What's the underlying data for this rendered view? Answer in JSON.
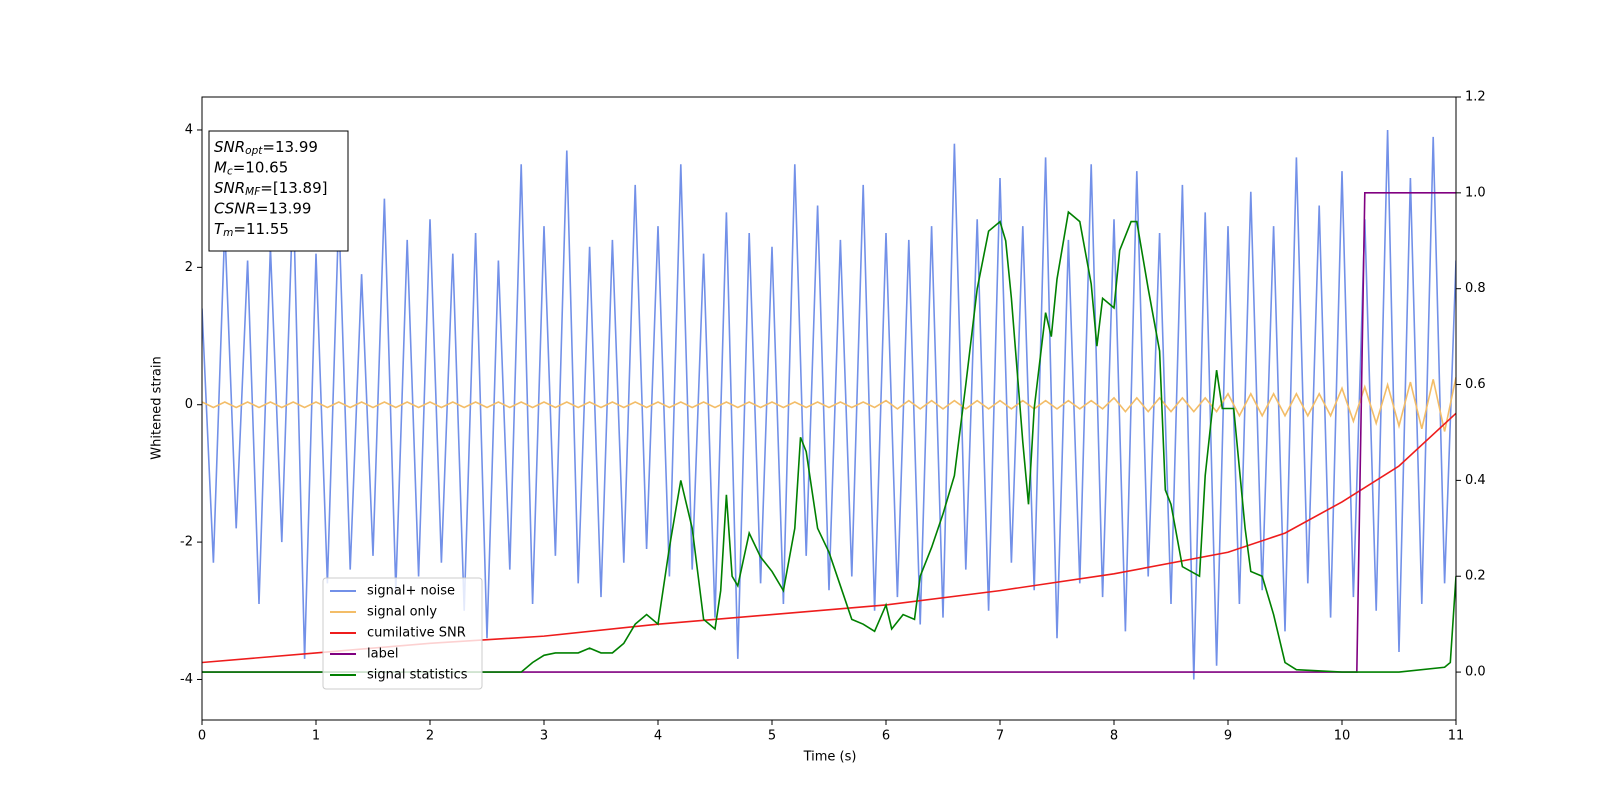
{
  "chart_data": {
    "type": "line",
    "x_label": "Time (s)",
    "y_label": "Whitened strain",
    "xlim": [
      0,
      11
    ],
    "xticks": [
      0,
      1,
      2,
      3,
      4,
      5,
      6,
      7,
      8,
      9,
      10,
      11
    ],
    "ylim": [
      -4.59,
      4.48
    ],
    "yticks": [
      -4,
      -2,
      0,
      2,
      4
    ],
    "y2lim": [
      -0.1,
      1.2
    ],
    "y2ticks": [
      {
        "value": 0,
        "label": "0.0"
      },
      0.2,
      0.4,
      0.6,
      0.8,
      {
        "value": 1,
        "label": "1.0"
      },
      1.2
    ],
    "legend": "lower left",
    "annotation": [
      {
        "symbol": "SNR",
        "sub": "opt",
        "text": "=13.99"
      },
      {
        "symbol": "M",
        "sub": "c",
        "text": "=10.65"
      },
      {
        "symbol": "SNR",
        "sub": "MF",
        "text": "=[13.89]"
      },
      {
        "symbol": "CSNR",
        "sub": null,
        "text": "=13.99"
      },
      {
        "symbol": "T",
        "sub": "m",
        "text": "=11.55"
      }
    ],
    "x": [
      0,
      0.1,
      0.2,
      0.3,
      0.4,
      0.5,
      0.6,
      0.7,
      0.8,
      0.9,
      1,
      1.1,
      1.2,
      1.3,
      1.4,
      1.5,
      1.6,
      1.7,
      1.8,
      1.9,
      2,
      2.1,
      2.2,
      2.3,
      2.4,
      2.5,
      2.6,
      2.7,
      2.8,
      2.9,
      3,
      3.1,
      3.2,
      3.3,
      3.4,
      3.5,
      3.6,
      3.7,
      3.8,
      3.9,
      4,
      4.1,
      4.2,
      4.3,
      4.4,
      4.5,
      4.6,
      4.7,
      4.8,
      4.9,
      5,
      5.1,
      5.2,
      5.3,
      5.4,
      5.5,
      5.6,
      5.7,
      5.8,
      5.9,
      6,
      6.1,
      6.2,
      6.3,
      6.4,
      6.5,
      6.6,
      6.7,
      6.8,
      6.9,
      7,
      7.1,
      7.2,
      7.3,
      7.4,
      7.5,
      7.6,
      7.7,
      7.8,
      7.9,
      8,
      8.1,
      8.2,
      8.3,
      8.4,
      8.5,
      8.6,
      8.7,
      8.8,
      8.9,
      9,
      9.1,
      9.2,
      9.3,
      9.4,
      9.5,
      9.6,
      9.7,
      9.8,
      9.9,
      10,
      10.1,
      10.2,
      10.3,
      10.4,
      10.5,
      10.6,
      10.7,
      10.8,
      10.9,
      11
    ],
    "series": [
      {
        "name": "signal+ noise",
        "color": "#7290e8",
        "axis": "y",
        "values": [
          1.4,
          -2.3,
          2.6,
          -1.8,
          2.1,
          -2.9,
          2.3,
          -2.0,
          3.1,
          -3.7,
          2.2,
          -2.6,
          2.8,
          -2.4,
          1.9,
          -2.2,
          3.0,
          -2.7,
          2.4,
          -2.5,
          2.7,
          -2.3,
          2.2,
          -3.0,
          2.5,
          -3.4,
          2.1,
          -2.4,
          3.5,
          -2.9,
          2.6,
          -2.2,
          3.7,
          -2.6,
          2.3,
          -2.8,
          2.4,
          -2.3,
          3.2,
          -2.1,
          2.6,
          -2.5,
          3.5,
          -2.4,
          2.2,
          -3.1,
          2.8,
          -3.7,
          2.5,
          -2.6,
          2.3,
          -2.9,
          3.5,
          -2.2,
          2.9,
          -2.7,
          2.4,
          -2.5,
          3.2,
          -3.0,
          2.5,
          -2.8,
          2.4,
          -3.2,
          2.6,
          -3.1,
          3.8,
          -2.4,
          2.7,
          -3.0,
          3.3,
          -2.3,
          2.6,
          -2.7,
          3.6,
          -3.4,
          2.4,
          -2.6,
          3.5,
          -2.8,
          2.7,
          -3.3,
          3.4,
          -2.5,
          2.5,
          -2.9,
          3.2,
          -4.0,
          2.8,
          -3.8,
          2.6,
          -2.9,
          3.1,
          -2.7,
          2.6,
          -3.3,
          3.6,
          -2.6,
          2.9,
          -3.1,
          3.4,
          -2.8,
          2.7,
          -3.0,
          4.0,
          -3.6,
          3.3,
          -2.9,
          3.9,
          -2.6,
          2.1
        ]
      },
      {
        "name": "signal only",
        "color": "#f3bd68",
        "axis": "y",
        "values": [
          0.04,
          -0.04,
          0.04,
          -0.04,
          0.04,
          -0.04,
          0.04,
          -0.04,
          0.04,
          -0.04,
          0.04,
          -0.04,
          0.04,
          -0.04,
          0.04,
          -0.04,
          0.04,
          -0.04,
          0.04,
          -0.04,
          0.04,
          -0.04,
          0.04,
          -0.04,
          0.04,
          -0.04,
          0.04,
          -0.04,
          0.04,
          -0.04,
          0.04,
          -0.04,
          0.04,
          -0.04,
          0.04,
          -0.04,
          0.04,
          -0.04,
          0.04,
          -0.04,
          0.04,
          -0.04,
          0.04,
          -0.04,
          0.04,
          -0.04,
          0.04,
          -0.04,
          0.04,
          -0.04,
          0.04,
          -0.04,
          0.04,
          -0.04,
          0.04,
          -0.04,
          0.04,
          -0.04,
          0.04,
          -0.04,
          0.06,
          -0.06,
          0.06,
          -0.06,
          0.06,
          -0.06,
          0.06,
          -0.06,
          0.06,
          -0.06,
          0.06,
          -0.06,
          0.06,
          -0.06,
          0.06,
          -0.06,
          0.06,
          -0.06,
          0.06,
          -0.06,
          0.1,
          -0.1,
          0.1,
          -0.1,
          0.1,
          -0.1,
          0.1,
          -0.1,
          0.1,
          -0.1,
          0.16,
          -0.16,
          0.16,
          -0.16,
          0.16,
          -0.16,
          0.16,
          -0.16,
          0.16,
          -0.16,
          0.24,
          -0.24,
          0.26,
          -0.27,
          0.29,
          -0.31,
          0.33,
          -0.35,
          0.37,
          -0.39,
          0.4
        ]
      },
      {
        "name": "cumilative SNR",
        "color": "#ee1c1c",
        "axis": "y2",
        "x": [
          0,
          1,
          2,
          3,
          4,
          5,
          6,
          7,
          8,
          9,
          9.5,
          10,
          10.5,
          11
        ],
        "values": [
          0.02,
          0.04,
          0.06,
          0.075,
          0.1,
          0.12,
          0.14,
          0.17,
          0.205,
          0.25,
          0.29,
          0.355,
          0.43,
          0.54
        ]
      },
      {
        "name": "label",
        "color": "#800080",
        "axis": "y2",
        "x": [
          0,
          10.13,
          10.2,
          11
        ],
        "values": [
          0,
          0,
          1,
          1
        ]
      },
      {
        "name": "signal statistics",
        "color": "#008000",
        "axis": "y2",
        "x": [
          0,
          2.8,
          2.9,
          3.0,
          3.1,
          3.2,
          3.3,
          3.4,
          3.5,
          3.6,
          3.7,
          3.8,
          3.9,
          4.0,
          4.1,
          4.2,
          4.3,
          4.4,
          4.5,
          4.55,
          4.6,
          4.65,
          4.7,
          4.8,
          4.9,
          5.0,
          5.1,
          5.2,
          5.25,
          5.3,
          5.4,
          5.5,
          5.6,
          5.7,
          5.8,
          5.9,
          6.0,
          6.05,
          6.15,
          6.25,
          6.3,
          6.4,
          6.5,
          6.6,
          6.7,
          6.8,
          6.9,
          7.0,
          7.05,
          7.1,
          7.2,
          7.25,
          7.3,
          7.4,
          7.45,
          7.5,
          7.6,
          7.7,
          7.8,
          7.85,
          7.9,
          8.0,
          8.05,
          8.15,
          8.2,
          8.3,
          8.4,
          8.45,
          8.5,
          8.6,
          8.75,
          8.8,
          8.9,
          8.95,
          9.05,
          9.15,
          9.2,
          9.3,
          9.4,
          9.5,
          9.6,
          10.0,
          10.5,
          10.9,
          10.95,
          11
        ],
        "values": [
          0,
          0,
          0.02,
          0.035,
          0.04,
          0.04,
          0.04,
          0.05,
          0.04,
          0.04,
          0.06,
          0.1,
          0.12,
          0.1,
          0.26,
          0.4,
          0.3,
          0.11,
          0.09,
          0.17,
          0.37,
          0.2,
          0.18,
          0.29,
          0.24,
          0.21,
          0.17,
          0.3,
          0.49,
          0.46,
          0.3,
          0.25,
          0.18,
          0.11,
          0.1,
          0.085,
          0.14,
          0.09,
          0.12,
          0.11,
          0.2,
          0.26,
          0.33,
          0.41,
          0.6,
          0.8,
          0.92,
          0.94,
          0.9,
          0.78,
          0.48,
          0.35,
          0.55,
          0.75,
          0.7,
          0.82,
          0.96,
          0.94,
          0.81,
          0.68,
          0.78,
          0.76,
          0.88,
          0.94,
          0.94,
          0.8,
          0.67,
          0.38,
          0.35,
          0.22,
          0.2,
          0.41,
          0.63,
          0.55,
          0.55,
          0.3,
          0.21,
          0.2,
          0.12,
          0.02,
          0.005,
          0,
          0,
          0.01,
          0.02,
          0.2
        ]
      }
    ]
  }
}
